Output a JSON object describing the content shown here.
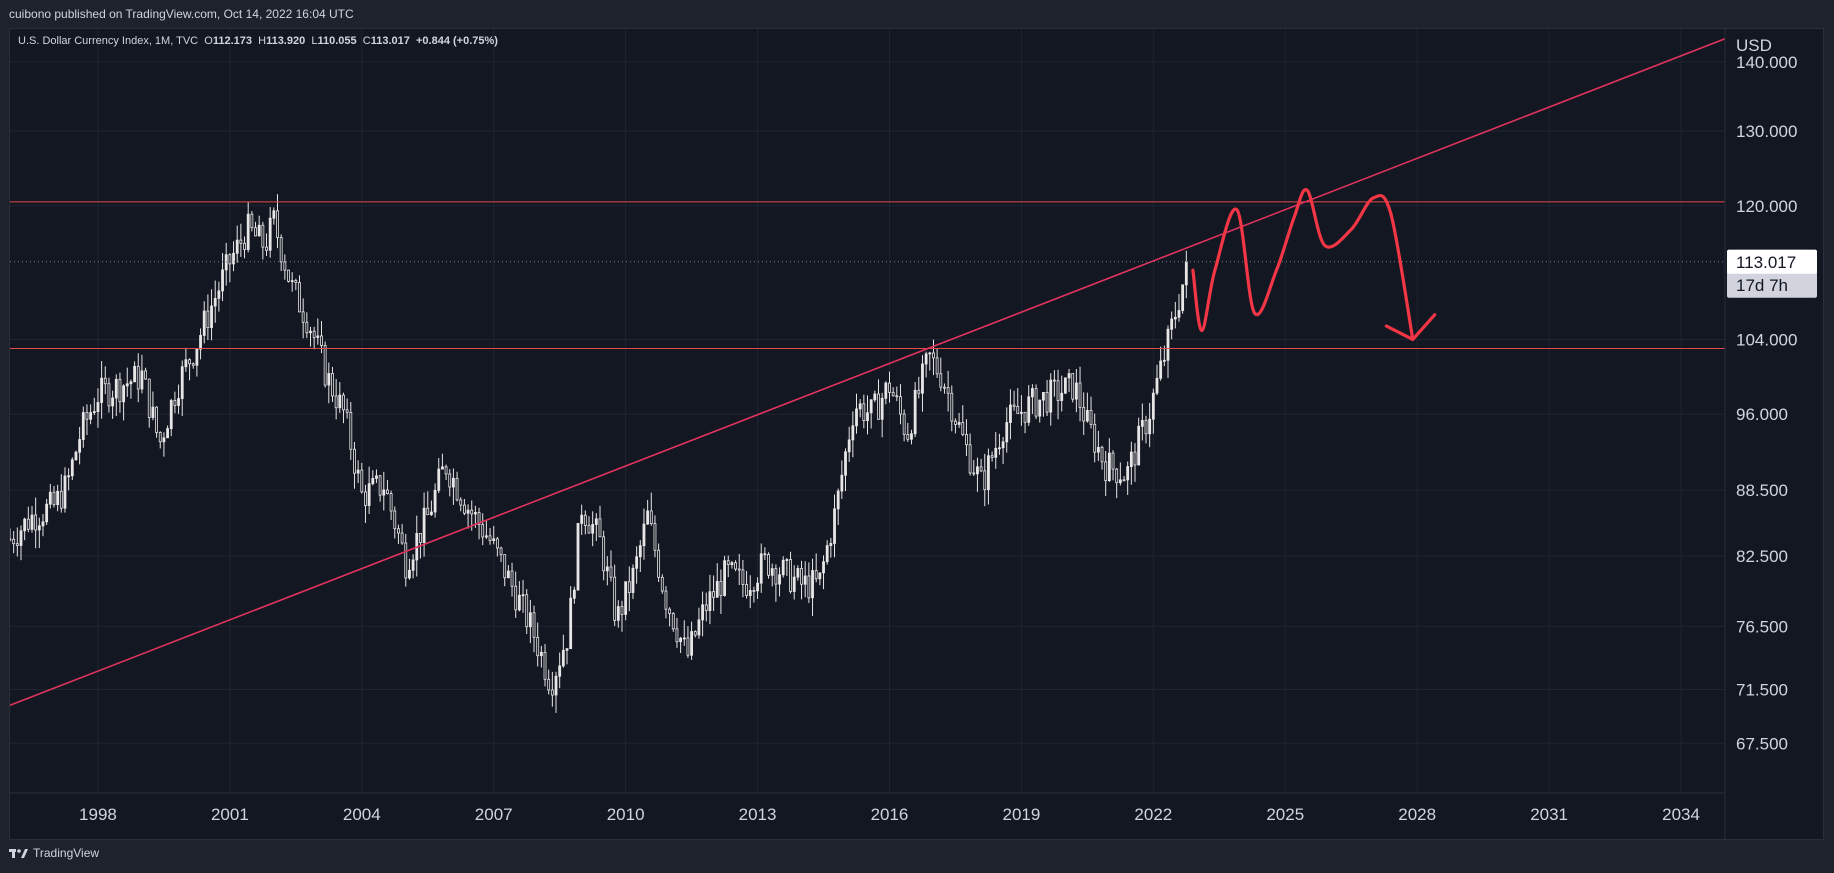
{
  "header": {
    "published_line": "cuibono published on TradingView.com, Oct 14, 2022 16:04 UTC"
  },
  "legend": {
    "symbol": "U.S. Dollar Currency Index, 1M, TVC",
    "open_label": "O",
    "open": "112.173",
    "high_label": "H",
    "high": "113.920",
    "low_label": "L",
    "low": "110.055",
    "close_label": "C",
    "close": "113.017",
    "change": "+0.844 (+0.75%)"
  },
  "footer": {
    "brand": "TradingView"
  },
  "chart_data": {
    "type": "candlestick",
    "title": "U.S. Dollar Currency Index, 1M, TVC",
    "currency_label": "USD",
    "y_scale": "log",
    "ylim": [
      64,
      145
    ],
    "xlim": [
      1996.0,
      2035.0
    ],
    "y_ticks": [
      "140.000",
      "130.000",
      "120.000",
      "104.000",
      "96.000",
      "88.500",
      "82.500",
      "76.500",
      "71.500",
      "67.500"
    ],
    "x_ticks": [
      "1998",
      "2001",
      "2004",
      "2007",
      "2010",
      "2013",
      "2016",
      "2019",
      "2022",
      "2025",
      "2028",
      "2031",
      "2034"
    ],
    "last_price": "113.017",
    "countdown": "17d 7h",
    "price_path": [
      [
        1996.0,
        84
      ],
      [
        1996.5,
        86
      ],
      [
        1997.0,
        87
      ],
      [
        1997.3,
        89
      ],
      [
        1997.6,
        94
      ],
      [
        1998.0,
        98
      ],
      [
        1998.5,
        99
      ],
      [
        1999.0,
        100
      ],
      [
        1999.4,
        93
      ],
      [
        1999.8,
        99
      ],
      [
        2000.2,
        103
      ],
      [
        2000.6,
        108
      ],
      [
        2001.0,
        113
      ],
      [
        2001.4,
        117
      ],
      [
        2001.8,
        115
      ],
      [
        2002.0,
        118
      ],
      [
        2002.4,
        110
      ],
      [
        2002.8,
        106
      ],
      [
        2003.2,
        100
      ],
      [
        2003.6,
        96
      ],
      [
        2004.0,
        88
      ],
      [
        2004.5,
        89
      ],
      [
        2005.0,
        82
      ],
      [
        2005.5,
        86
      ],
      [
        2005.9,
        91
      ],
      [
        2006.4,
        87
      ],
      [
        2006.9,
        84
      ],
      [
        2007.4,
        80
      ],
      [
        2007.9,
        76
      ],
      [
        2008.3,
        72
      ],
      [
        2008.7,
        76
      ],
      [
        2009.0,
        87
      ],
      [
        2009.4,
        84
      ],
      [
        2009.8,
        77
      ],
      [
        2010.2,
        81
      ],
      [
        2010.5,
        86
      ],
      [
        2010.9,
        79
      ],
      [
        2011.4,
        74
      ],
      [
        2011.8,
        78
      ],
      [
        2012.3,
        81
      ],
      [
        2012.7,
        80
      ],
      [
        2013.2,
        82
      ],
      [
        2013.6,
        81
      ],
      [
        2014.0,
        80
      ],
      [
        2014.4,
        80
      ],
      [
        2014.8,
        87
      ],
      [
        2015.2,
        97
      ],
      [
        2015.6,
        96
      ],
      [
        2016.0,
        99
      ],
      [
        2016.4,
        94
      ],
      [
        2016.9,
        102
      ],
      [
        2017.2,
        100
      ],
      [
        2017.7,
        93
      ],
      [
        2018.1,
        89
      ],
      [
        2018.6,
        95
      ],
      [
        2019.2,
        97
      ],
      [
        2019.7,
        98
      ],
      [
        2020.2,
        99
      ],
      [
        2020.5,
        95
      ],
      [
        2020.9,
        91
      ],
      [
        2021.4,
        90
      ],
      [
        2021.9,
        96
      ],
      [
        2022.3,
        103
      ],
      [
        2022.7,
        111
      ],
      [
        2022.79,
        113.017
      ]
    ],
    "horizontal_levels": [
      120.5,
      103.0
    ],
    "trendline": [
      [
        1996.0,
        70.3
      ],
      [
        2035.0,
        143.5
      ]
    ],
    "projection_path": [
      [
        2022.9,
        112
      ],
      [
        2023.1,
        105
      ],
      [
        2023.4,
        112
      ],
      [
        2023.9,
        119.5
      ],
      [
        2024.3,
        107
      ],
      [
        2024.8,
        112
      ],
      [
        2025.2,
        118.5
      ],
      [
        2025.5,
        122
      ],
      [
        2025.9,
        115
      ],
      [
        2026.5,
        117
      ],
      [
        2027.0,
        121
      ],
      [
        2027.4,
        119
      ],
      [
        2027.9,
        104
      ]
    ],
    "arrowhead": [
      [
        2027.3,
        105.5
      ],
      [
        2027.9,
        104
      ],
      [
        2028.4,
        106.8
      ]
    ]
  },
  "colors": {
    "background": "#131722",
    "frame": "#1e222d",
    "candle": "#e6e6e6",
    "level_line": "#e24b4b",
    "trendline": "#e0335e",
    "projection": "#f23645",
    "price_label_bg": "#d1d4dc"
  }
}
